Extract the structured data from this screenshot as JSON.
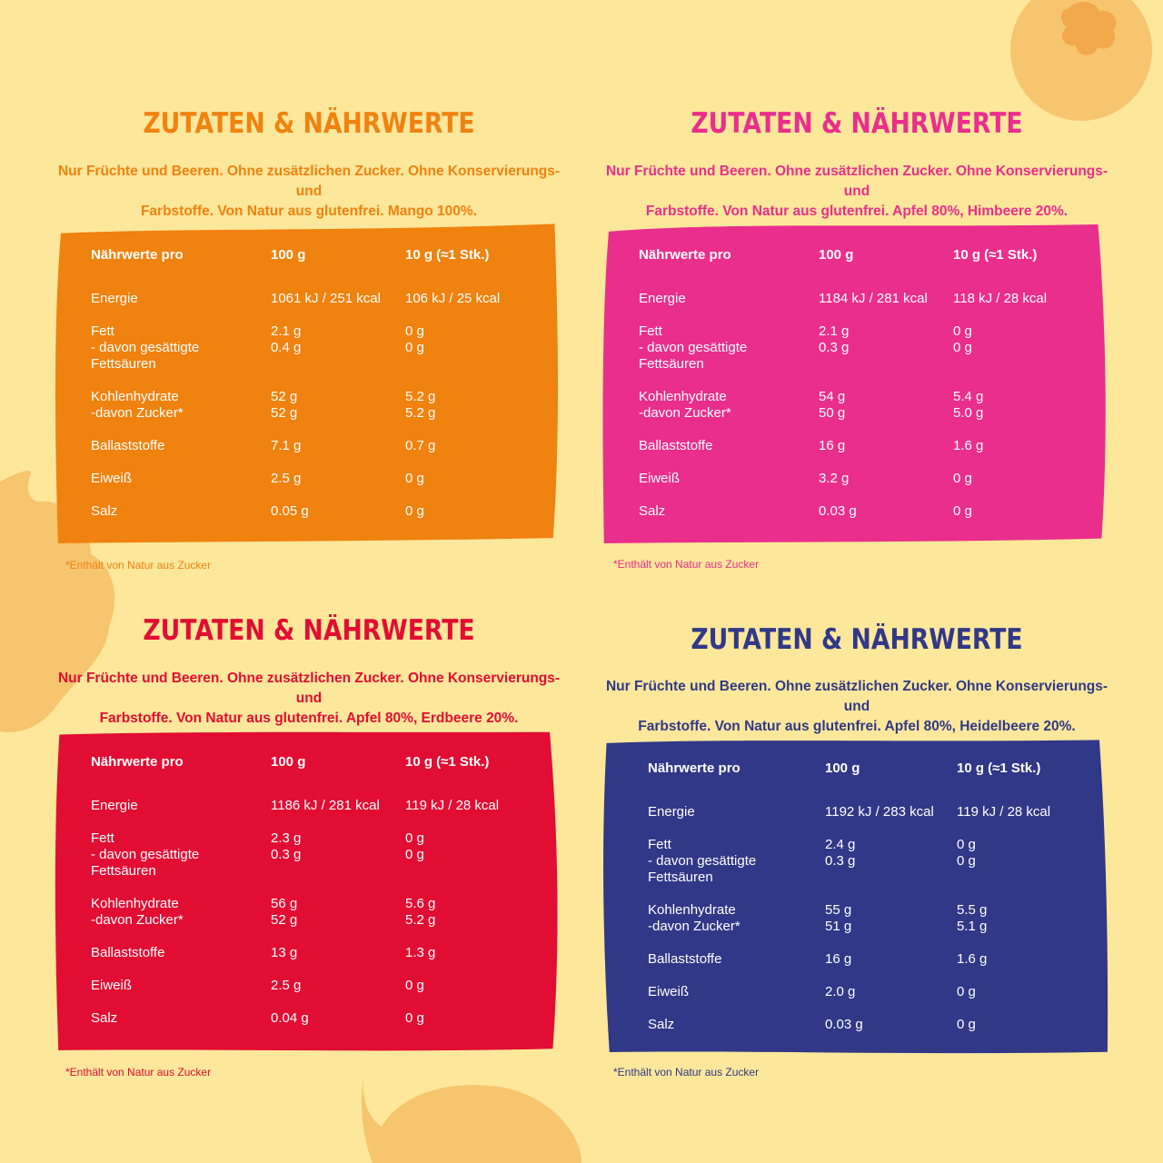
{
  "colors": {
    "background": "#fce79b",
    "decoration": "#f7c56e",
    "mango": "#f0820f",
    "himbeere": "#ea2e8c",
    "erdbeere": "#e20d33",
    "heidelbeere": "#313887"
  },
  "panels": [
    {
      "id": "mango",
      "color": "#f0820f",
      "title": "ZUTATEN & NÄHRWERTE",
      "intro_line1": "Nur Früchte und Beeren. Ohne zusätzlichen Zucker. Ohne Konservierungs- und",
      "intro_line2": "Farbstoffe. Von Natur aus glutenfrei. Mango 100%.",
      "header": {
        "label": "Nährwerte pro",
        "col1": "100 g",
        "col2": "10 g (≈1 Stk.)"
      },
      "rows": [
        {
          "label": [
            "Energie"
          ],
          "col1": [
            "1061 kJ / 251 kcal"
          ],
          "col2": [
            "106 kJ / 25 kcal"
          ]
        },
        {
          "label": [
            "Fett",
            "- davon gesättigte",
            "Fettsäuren"
          ],
          "col1": [
            "2.1 g",
            "0.4 g"
          ],
          "col2": [
            "0 g",
            "0 g"
          ]
        },
        {
          "label": [
            "Kohlenhydrate",
            "-davon Zucker*"
          ],
          "col1": [
            "52 g",
            "52 g"
          ],
          "col2": [
            "5.2 g",
            "5.2 g"
          ]
        },
        {
          "label": [
            "Ballaststoffe"
          ],
          "col1": [
            "7.1 g"
          ],
          "col2": [
            "0.7 g"
          ]
        },
        {
          "label": [
            "Eiweiß"
          ],
          "col1": [
            "2.5 g"
          ],
          "col2": [
            "0 g"
          ]
        },
        {
          "label": [
            "Salz"
          ],
          "col1": [
            "0.05 g"
          ],
          "col2": [
            "0 g"
          ]
        }
      ],
      "footnote": "*Enthält von Natur aus Zucker"
    },
    {
      "id": "himbeere",
      "color": "#ea2e8c",
      "title": "ZUTATEN & NÄHRWERTE",
      "intro_line1": "Nur Früchte und Beeren. Ohne zusätzlichen Zucker. Ohne Konservierungs- und",
      "intro_line2": "Farbstoffe. Von Natur aus glutenfrei. Apfel 80%, Himbeere 20%.",
      "header": {
        "label": "Nährwerte pro",
        "col1": "100 g",
        "col2": "10 g (≈1 Stk.)"
      },
      "rows": [
        {
          "label": [
            "Energie"
          ],
          "col1": [
            "1184 kJ / 281 kcal"
          ],
          "col2": [
            "118 kJ / 28 kcal"
          ]
        },
        {
          "label": [
            "Fett",
            "- davon gesättigte",
            "Fettsäuren"
          ],
          "col1": [
            "2.1 g",
            "0.3 g"
          ],
          "col2": [
            "0 g",
            "0 g"
          ]
        },
        {
          "label": [
            "Kohlenhydrate",
            "-davon Zucker*"
          ],
          "col1": [
            "54 g",
            "50 g"
          ],
          "col2": [
            "5.4 g",
            "5.0 g"
          ]
        },
        {
          "label": [
            "Ballaststoffe"
          ],
          "col1": [
            "16 g"
          ],
          "col2": [
            "1.6 g"
          ]
        },
        {
          "label": [
            "Eiweiß"
          ],
          "col1": [
            "3.2 g"
          ],
          "col2": [
            "0 g"
          ]
        },
        {
          "label": [
            "Salz"
          ],
          "col1": [
            "0.03 g"
          ],
          "col2": [
            "0 g"
          ]
        }
      ],
      "footnote": "*Enthält von Natur aus Zucker"
    },
    {
      "id": "erdbeere",
      "color": "#e20d33",
      "title": "ZUTATEN & NÄHRWERTE",
      "intro_line1": "Nur Früchte und Beeren. Ohne zusätzlichen Zucker. Ohne Konservierungs- und",
      "intro_line2": "Farbstoffe. Von Natur aus glutenfrei. Apfel 80%, Erdbeere 20%.",
      "header": {
        "label": "Nährwerte pro",
        "col1": "100 g",
        "col2": "10 g (≈1 Stk.)"
      },
      "rows": [
        {
          "label": [
            "Energie"
          ],
          "col1": [
            "1186 kJ / 281 kcal"
          ],
          "col2": [
            "119 kJ / 28 kcal"
          ]
        },
        {
          "label": [
            "Fett",
            "- davon gesättigte",
            "Fettsäuren"
          ],
          "col1": [
            "2.3 g",
            "0.3 g"
          ],
          "col2": [
            "0 g",
            "0 g"
          ]
        },
        {
          "label": [
            "Kohlenhydrate",
            "-davon Zucker*"
          ],
          "col1": [
            "56 g",
            "52 g"
          ],
          "col2": [
            "5.6 g",
            "5.2 g"
          ]
        },
        {
          "label": [
            "Ballaststoffe"
          ],
          "col1": [
            "13 g"
          ],
          "col2": [
            "1.3 g"
          ]
        },
        {
          "label": [
            "Eiweiß"
          ],
          "col1": [
            "2.5 g"
          ],
          "col2": [
            "0 g"
          ]
        },
        {
          "label": [
            "Salz"
          ],
          "col1": [
            "0.04 g"
          ],
          "col2": [
            "0 g"
          ]
        }
      ],
      "footnote": "*Enthält von Natur aus Zucker"
    },
    {
      "id": "heidelbeere",
      "color": "#313887",
      "title": "ZUTATEN & NÄHRWERTE",
      "intro_line1": "Nur Früchte und Beeren. Ohne zusätzlichen Zucker. Ohne Konservierungs- und",
      "intro_line2": "Farbstoffe. Von Natur aus glutenfrei. Apfel 80%, Heidelbeere 20%.",
      "header": {
        "label": "Nährwerte pro",
        "col1": "100 g",
        "col2": "10 g (≈1 Stk.)"
      },
      "rows": [
        {
          "label": [
            "Energie"
          ],
          "col1": [
            "1192 kJ / 283 kcal"
          ],
          "col2": [
            "119 kJ / 28 kcal"
          ]
        },
        {
          "label": [
            "Fett",
            "- davon gesättigte",
            "Fettsäuren"
          ],
          "col1": [
            "2.4 g",
            "0.3 g"
          ],
          "col2": [
            "0 g",
            "0 g"
          ]
        },
        {
          "label": [
            "Kohlenhydrate",
            "-davon Zucker*"
          ],
          "col1": [
            "55 g",
            "51 g"
          ],
          "col2": [
            "5.5 g",
            "5.1 g"
          ]
        },
        {
          "label": [
            "Ballaststoffe"
          ],
          "col1": [
            "16 g"
          ],
          "col2": [
            "1.6 g"
          ]
        },
        {
          "label": [
            "Eiweiß"
          ],
          "col1": [
            "2.0 g"
          ],
          "col2": [
            "0 g"
          ]
        },
        {
          "label": [
            "Salz"
          ],
          "col1": [
            "0.03 g"
          ],
          "col2": [
            "0 g"
          ]
        }
      ],
      "footnote": "*Enthält von Natur aus Zucker"
    }
  ]
}
